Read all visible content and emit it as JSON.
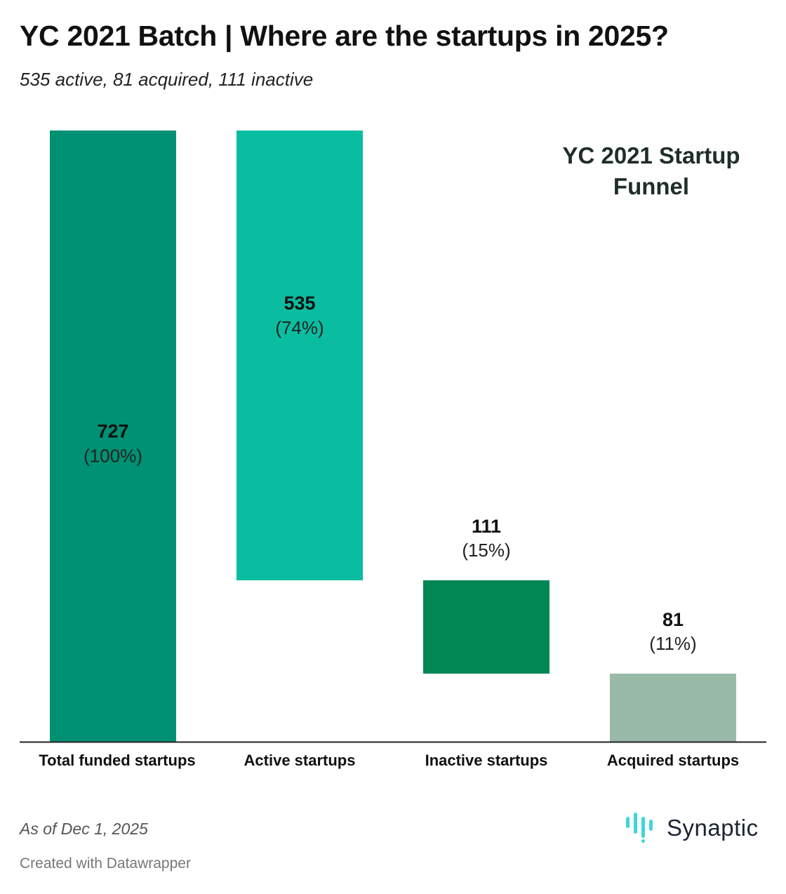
{
  "header": {
    "title": "YC 2021 Batch | Where are the startups in 2025?",
    "subtitle": "535 active, 81 acquired, 111 inactive"
  },
  "annotation": {
    "line1": "YC 2021 Startup",
    "line2": "Funnel"
  },
  "chart_data": {
    "type": "bar",
    "layout": "waterfall",
    "title": "YC 2021 Batch | Where are the startups in 2025?",
    "subtitle": "535 active, 81 acquired, 111 inactive",
    "categories": [
      "Total funded startups",
      "Active startups",
      "Inactive startups",
      "Acquired startups"
    ],
    "values": [
      727,
      535,
      111,
      81
    ],
    "percent_labels": [
      "(100%)",
      "(74%)",
      "(15%)",
      "(11%)"
    ],
    "bar_start": [
      0,
      192,
      81,
      0
    ],
    "bar_end": [
      727,
      727,
      192,
      81
    ],
    "colors": [
      "#009073",
      "#0abda0",
      "#008753",
      "#99baa9"
    ],
    "ylim": [
      0,
      727
    ],
    "grid": false,
    "legend": false
  },
  "footer": {
    "notes": "As of Dec 1, 2025",
    "credit": "Created with Datawrapper",
    "logo_text": "Synaptic",
    "logo_icon": "synaptic-bars-icon"
  }
}
